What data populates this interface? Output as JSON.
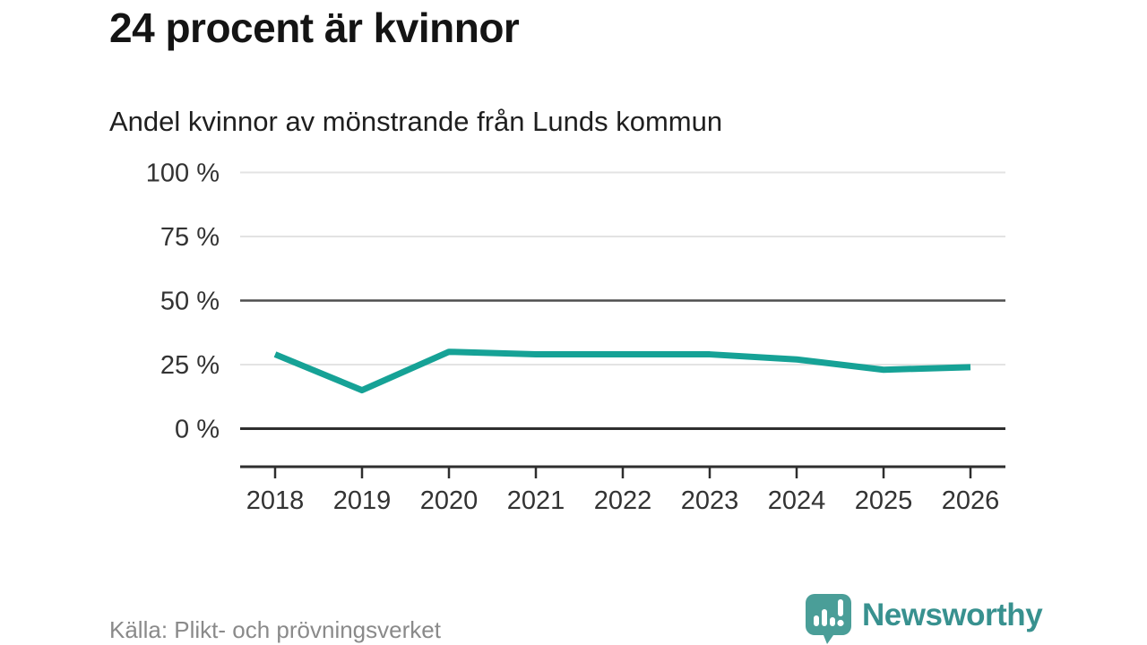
{
  "header": {
    "title": "24 procent är kvinnor",
    "subtitle": "Andel kvinnor av mönstrande från Lunds kommun"
  },
  "chart_data": {
    "type": "line",
    "x": [
      "2018",
      "2019",
      "2020",
      "2021",
      "2022",
      "2023",
      "2024",
      "2025",
      "2026"
    ],
    "series": [
      {
        "name": "Andel kvinnor av mönstrande",
        "values": [
          29,
          15,
          30,
          29,
          29,
          29,
          27,
          23,
          24
        ]
      }
    ],
    "title": "24 procent är kvinnor",
    "subtitle": "Andel kvinnor av mönstrande från Lunds kommun",
    "xlabel": "",
    "ylabel": "",
    "ylim": [
      0,
      100
    ],
    "y_ticks": [
      0,
      25,
      50,
      75,
      100
    ],
    "y_tick_labels": [
      "0 %",
      "25 %",
      "50 %",
      "75 %",
      "100 %"
    ],
    "grid": "horizontal",
    "legend_position": "none",
    "line_color": "#16a296",
    "gridline_color_light": "#e3e3e3",
    "gridline_color_mid": "#4f4f4f",
    "axis_color": "#2e2e2e",
    "tick_label_color": "#333333",
    "emphasized_gridlines": [
      0,
      50
    ]
  },
  "footer": {
    "source": "Källa: Plikt- och prövningsverket",
    "brand": "Newsworthy",
    "brand_icon": "newsworthy-chart-bubble-icon",
    "brand_color": "#38918f",
    "brand_bubble_color": "#4a9e98"
  }
}
